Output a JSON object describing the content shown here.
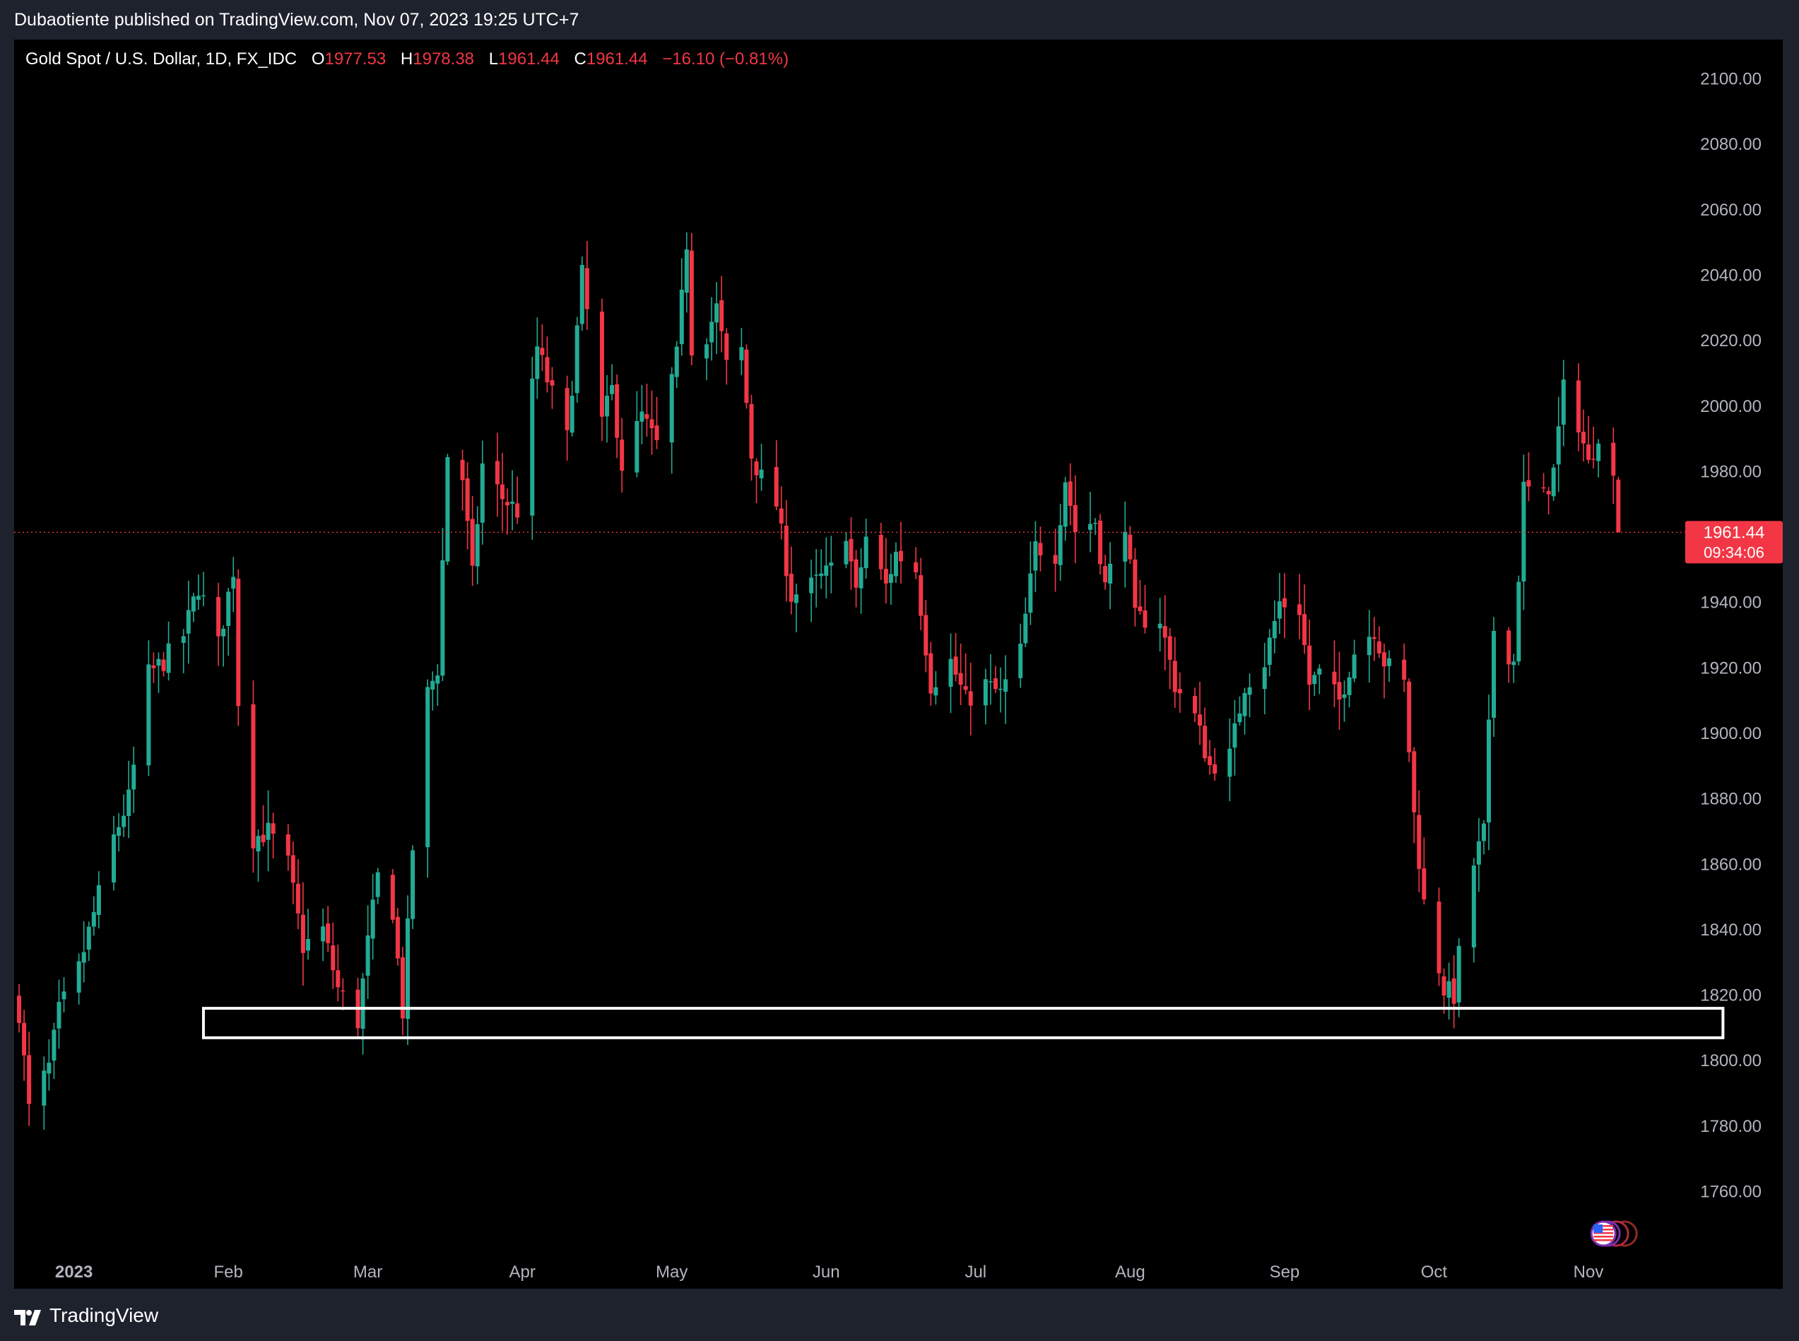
{
  "header": {
    "published_text": "Dubaotiente published on TradingView.com, Nov 07, 2023 19:25 UTC+7"
  },
  "legend": {
    "symbol": "Gold Spot / U.S. Dollar, 1D, FX_IDC",
    "o_label": "O",
    "o_value": "1977.53",
    "h_label": "H",
    "h_value": "1978.38",
    "l_label": "L",
    "l_value": "1961.44",
    "c_label": "C",
    "c_value": "1961.44",
    "change": "−16.10 (−0.81%)"
  },
  "price_tag": {
    "price": "1961.44",
    "countdown": "09:34:06"
  },
  "footer": {
    "brand": "TradingView"
  },
  "colors": {
    "up": "#22ab94",
    "down": "#f23645",
    "background": "#000000",
    "frame": "#1e222d",
    "axis_text": "#b2b5be",
    "box": "#ffffff"
  },
  "chart_data": {
    "type": "candlestick",
    "interval": "1D",
    "y_ticks": [
      "1760.00",
      "1780.00",
      "1800.00",
      "1820.00",
      "1840.00",
      "1860.00",
      "1880.00",
      "1900.00",
      "1920.00",
      "1940.00",
      "1960.00",
      "1980.00",
      "2000.00",
      "2020.00",
      "2040.00",
      "2060.00",
      "2080.00",
      "2100.00"
    ],
    "ylim": [
      1745,
      2112
    ],
    "x_labels": [
      {
        "label": "2023",
        "date": "2023-01-01"
      },
      {
        "label": "Feb",
        "date": "2023-02-01"
      },
      {
        "label": "Mar",
        "date": "2023-03-01"
      },
      {
        "label": "Apr",
        "date": "2023-04-01"
      },
      {
        "label": "May",
        "date": "2023-05-01"
      },
      {
        "label": "Jun",
        "date": "2023-06-01"
      },
      {
        "label": "Jul",
        "date": "2023-07-01"
      },
      {
        "label": "Aug",
        "date": "2023-08-01"
      },
      {
        "label": "Sep",
        "date": "2023-09-01"
      },
      {
        "label": "Oct",
        "date": "2023-10-01"
      },
      {
        "label": "Nov",
        "date": "2023-11-01"
      }
    ],
    "date_range": [
      "2022-12-20",
      "2023-12-10"
    ],
    "last_price": 1961.44,
    "support_zone": {
      "from_date": "2023-01-27",
      "to_date": "2023-11-28",
      "low": 1807,
      "high": 1816
    },
    "close_path": [
      {
        "date": "2022-12-21",
        "close": 1815
      },
      {
        "date": "2022-12-23",
        "close": 1785
      },
      {
        "date": "2022-12-27",
        "close": 1798
      },
      {
        "date": "2022-12-29",
        "close": 1815
      },
      {
        "date": "2023-01-02",
        "close": 1828
      },
      {
        "date": "2023-01-05",
        "close": 1845
      },
      {
        "date": "2023-01-09",
        "close": 1868
      },
      {
        "date": "2023-01-12",
        "close": 1880
      },
      {
        "date": "2023-01-16",
        "close": 1918
      },
      {
        "date": "2023-01-19",
        "close": 1922
      },
      {
        "date": "2023-01-23",
        "close": 1930
      },
      {
        "date": "2023-01-26",
        "close": 1945
      },
      {
        "date": "2023-01-30",
        "close": 1927
      },
      {
        "date": "2023-02-02",
        "close": 1950
      },
      {
        "date": "2023-02-03",
        "close": 1910
      },
      {
        "date": "2023-02-06",
        "close": 1868
      },
      {
        "date": "2023-02-09",
        "close": 1870
      },
      {
        "date": "2023-02-13",
        "close": 1860
      },
      {
        "date": "2023-02-16",
        "close": 1835
      },
      {
        "date": "2023-02-20",
        "close": 1840
      },
      {
        "date": "2023-02-23",
        "close": 1822
      },
      {
        "date": "2023-02-27",
        "close": 1812
      },
      {
        "date": "2023-03-01",
        "close": 1836
      },
      {
        "date": "2023-03-03",
        "close": 1856
      },
      {
        "date": "2023-03-06",
        "close": 1846
      },
      {
        "date": "2023-03-08",
        "close": 1815
      },
      {
        "date": "2023-03-10",
        "close": 1865
      },
      {
        "date": "2023-03-13",
        "close": 1912
      },
      {
        "date": "2023-03-15",
        "close": 1920
      },
      {
        "date": "2023-03-17",
        "close": 1985
      },
      {
        "date": "2023-03-20",
        "close": 1978
      },
      {
        "date": "2023-03-22",
        "close": 1948
      },
      {
        "date": "2023-03-24",
        "close": 1982
      },
      {
        "date": "2023-03-28",
        "close": 1972
      },
      {
        "date": "2023-03-31",
        "close": 1968
      },
      {
        "date": "2023-04-04",
        "close": 2018
      },
      {
        "date": "2023-04-06",
        "close": 2008
      },
      {
        "date": "2023-04-10",
        "close": 1990
      },
      {
        "date": "2023-04-13",
        "close": 2040
      },
      {
        "date": "2023-04-17",
        "close": 1995
      },
      {
        "date": "2023-04-19",
        "close": 2005
      },
      {
        "date": "2023-04-21",
        "close": 1982
      },
      {
        "date": "2023-04-25",
        "close": 1997
      },
      {
        "date": "2023-04-28",
        "close": 1988
      },
      {
        "date": "2023-05-02",
        "close": 2015
      },
      {
        "date": "2023-05-04",
        "close": 2050
      },
      {
        "date": "2023-05-05",
        "close": 2018
      },
      {
        "date": "2023-05-08",
        "close": 2022
      },
      {
        "date": "2023-05-10",
        "close": 2030
      },
      {
        "date": "2023-05-12",
        "close": 2012
      },
      {
        "date": "2023-05-15",
        "close": 2017
      },
      {
        "date": "2023-05-17",
        "close": 1985
      },
      {
        "date": "2023-05-19",
        "close": 1978
      },
      {
        "date": "2023-05-22",
        "close": 1970
      },
      {
        "date": "2023-05-25",
        "close": 1942
      },
      {
        "date": "2023-05-29",
        "close": 1945
      },
      {
        "date": "2023-06-02",
        "close": 1950
      },
      {
        "date": "2023-06-05",
        "close": 1962
      },
      {
        "date": "2023-06-07",
        "close": 1942
      },
      {
        "date": "2023-06-09",
        "close": 1960
      },
      {
        "date": "2023-06-13",
        "close": 1945
      },
      {
        "date": "2023-06-15",
        "close": 1955
      },
      {
        "date": "2023-06-19",
        "close": 1950
      },
      {
        "date": "2023-06-22",
        "close": 1915
      },
      {
        "date": "2023-06-26",
        "close": 1922
      },
      {
        "date": "2023-06-29",
        "close": 1910
      },
      {
        "date": "2023-07-03",
        "close": 1915
      },
      {
        "date": "2023-07-06",
        "close": 1912
      },
      {
        "date": "2023-07-10",
        "close": 1925
      },
      {
        "date": "2023-07-13",
        "close": 1957
      },
      {
        "date": "2023-07-17",
        "close": 1955
      },
      {
        "date": "2023-07-19",
        "close": 1978
      },
      {
        "date": "2023-07-21",
        "close": 1962
      },
      {
        "date": "2023-07-25",
        "close": 1965
      },
      {
        "date": "2023-07-27",
        "close": 1945
      },
      {
        "date": "2023-07-31",
        "close": 1965
      },
      {
        "date": "2023-08-02",
        "close": 1935
      },
      {
        "date": "2023-08-07",
        "close": 1935
      },
      {
        "date": "2023-08-10",
        "close": 1915
      },
      {
        "date": "2023-08-14",
        "close": 1905
      },
      {
        "date": "2023-08-17",
        "close": 1890
      },
      {
        "date": "2023-08-21",
        "close": 1893
      },
      {
        "date": "2023-08-24",
        "close": 1915
      },
      {
        "date": "2023-08-28",
        "close": 1922
      },
      {
        "date": "2023-08-31",
        "close": 1940
      },
      {
        "date": "2023-09-04",
        "close": 1938
      },
      {
        "date": "2023-09-06",
        "close": 1915
      },
      {
        "date": "2023-09-08",
        "close": 1918
      },
      {
        "date": "2023-09-12",
        "close": 1910
      },
      {
        "date": "2023-09-15",
        "close": 1925
      },
      {
        "date": "2023-09-19",
        "close": 1932
      },
      {
        "date": "2023-09-21",
        "close": 1922
      },
      {
        "date": "2023-09-25",
        "close": 1915
      },
      {
        "date": "2023-09-27",
        "close": 1875
      },
      {
        "date": "2023-09-29",
        "close": 1848
      },
      {
        "date": "2023-10-03",
        "close": 1822
      },
      {
        "date": "2023-10-05",
        "close": 1820
      },
      {
        "date": "2023-10-06",
        "close": 1832
      },
      {
        "date": "2023-10-09",
        "close": 1860
      },
      {
        "date": "2023-10-11",
        "close": 1870
      },
      {
        "date": "2023-10-13",
        "close": 1932
      },
      {
        "date": "2023-10-17",
        "close": 1922
      },
      {
        "date": "2023-10-19",
        "close": 1975
      },
      {
        "date": "2023-10-23",
        "close": 1972
      },
      {
        "date": "2023-10-25",
        "close": 1980
      },
      {
        "date": "2023-10-27",
        "close": 2005
      },
      {
        "date": "2023-10-30",
        "close": 1995
      },
      {
        "date": "2023-11-01",
        "close": 1982
      },
      {
        "date": "2023-11-03",
        "close": 1992
      },
      {
        "date": "2023-11-06",
        "close": 1977.53
      },
      {
        "date": "2023-11-07",
        "close": 1961.44
      }
    ]
  }
}
